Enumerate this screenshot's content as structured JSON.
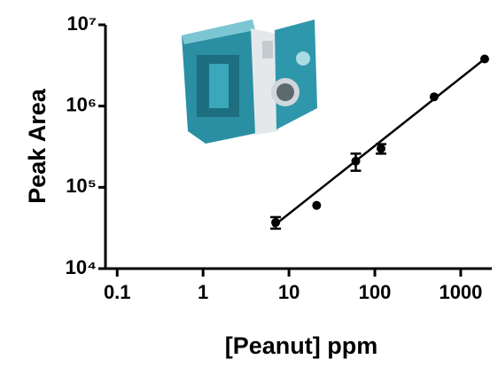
{
  "chart_data": {
    "type": "scatter",
    "x_label": "[Peanut]   ppm",
    "y_label": "Peak  Area",
    "x_scale": "log",
    "y_scale": "log",
    "xlim": [
      0.073,
      2300
    ],
    "ylim": [
      10000,
      10000000
    ],
    "xticks": [
      0.1,
      1,
      10,
      100,
      1000
    ],
    "yticks": [
      {
        "value": 10000,
        "label": "10⁴"
      },
      {
        "value": 100000,
        "label": "10⁵"
      },
      {
        "value": 1000000,
        "label": "10⁶"
      },
      {
        "value": 10000000,
        "label": "10⁷"
      }
    ],
    "color": "#000000",
    "x": [
      7,
      21,
      60,
      118,
      490,
      1900
    ],
    "values": [
      37000,
      60000,
      210000,
      300000,
      1300000,
      3800000
    ],
    "errors": [
      6000,
      null,
      50000,
      40000,
      null,
      null
    ],
    "fit": {
      "x": [
        6.5,
        1900
      ],
      "y": [
        33000,
        3800000
      ]
    }
  }
}
